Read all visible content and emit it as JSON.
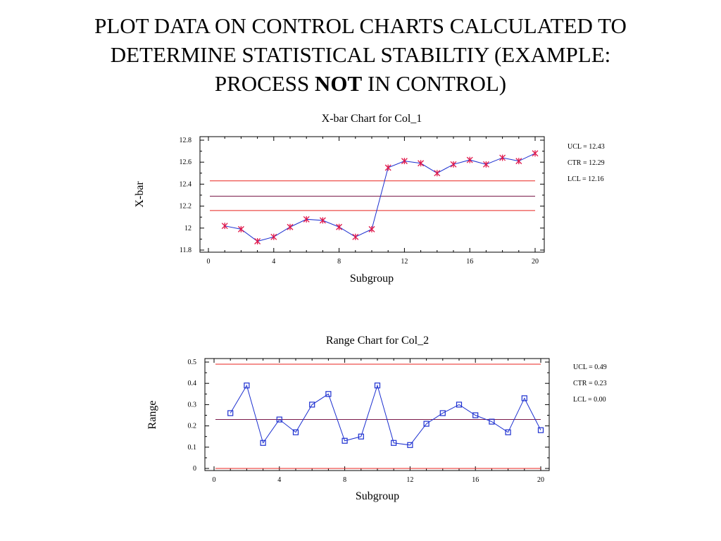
{
  "slide": {
    "title_line1": "PLOT DATA ON CONTROL CHARTS CALCULATED TO",
    "title_line2": "DETERMINE STATISTICAL STABILTIY (EXAMPLE:",
    "title_line3_pre": "PROCESS",
    "title_line3_bold": "NOT",
    "title_line3_post": "IN CONTROL)"
  },
  "colors": {
    "data_line": "#1c2fd0",
    "limit_line": "#e8231f",
    "center_line": "#7a1a4a",
    "marker_x": "#e0184a",
    "marker_square": "#1c2fd0"
  },
  "chart_data": [
    {
      "type": "line",
      "title": "X-bar Chart for Col_1",
      "xlabel": "Subgroup",
      "ylabel": "X-bar",
      "xlim": [
        0,
        20
      ],
      "ylim": [
        11.8,
        12.8
      ],
      "xticks": [
        "0",
        "4",
        "8",
        "12",
        "16",
        "20"
      ],
      "yticks": [
        "11.8",
        "12",
        "12.2",
        "12.4",
        "12.6",
        "12.8"
      ],
      "marker": "asterisk",
      "x": [
        1,
        2,
        3,
        4,
        5,
        6,
        7,
        8,
        9,
        10,
        11,
        12,
        13,
        14,
        15,
        16,
        17,
        18,
        19,
        20
      ],
      "values": [
        12.02,
        11.99,
        11.88,
        11.92,
        12.01,
        12.08,
        12.07,
        12.01,
        11.92,
        11.99,
        12.55,
        12.61,
        12.59,
        12.5,
        12.58,
        12.62,
        12.58,
        12.64,
        12.61,
        12.68
      ],
      "limits": [
        {
          "label": "UCL = 12.43",
          "value": 12.43,
          "kind": "limit"
        },
        {
          "label": "CTR = 12.29",
          "value": 12.29,
          "kind": "center"
        },
        {
          "label": "LCL = 12.16",
          "value": 12.16,
          "kind": "limit"
        }
      ],
      "grid": false,
      "legend": "right"
    },
    {
      "type": "line",
      "title": "Range Chart for Col_2",
      "xlabel": "Subgroup",
      "ylabel": "Range",
      "xlim": [
        0,
        20
      ],
      "ylim": [
        0,
        0.5
      ],
      "xticks": [
        "0",
        "4",
        "8",
        "12",
        "16",
        "20"
      ],
      "yticks": [
        "0",
        "0.1",
        "0.2",
        "0.3",
        "0.4",
        "0.5"
      ],
      "marker": "square",
      "x": [
        1,
        2,
        3,
        4,
        5,
        6,
        7,
        8,
        9,
        10,
        11,
        12,
        13,
        14,
        15,
        16,
        17,
        18,
        19,
        20
      ],
      "values": [
        0.26,
        0.39,
        0.12,
        0.23,
        0.17,
        0.3,
        0.35,
        0.13,
        0.15,
        0.39,
        0.12,
        0.11,
        0.21,
        0.26,
        0.3,
        0.25,
        0.22,
        0.17,
        0.33,
        0.18
      ],
      "limits": [
        {
          "label": "UCL = 0.49",
          "value": 0.49,
          "kind": "limit"
        },
        {
          "label": "CTR = 0.23",
          "value": 0.23,
          "kind": "center"
        },
        {
          "label": "LCL = 0.00",
          "value": 0.0,
          "kind": "limit"
        }
      ],
      "grid": false,
      "legend": "right"
    }
  ]
}
